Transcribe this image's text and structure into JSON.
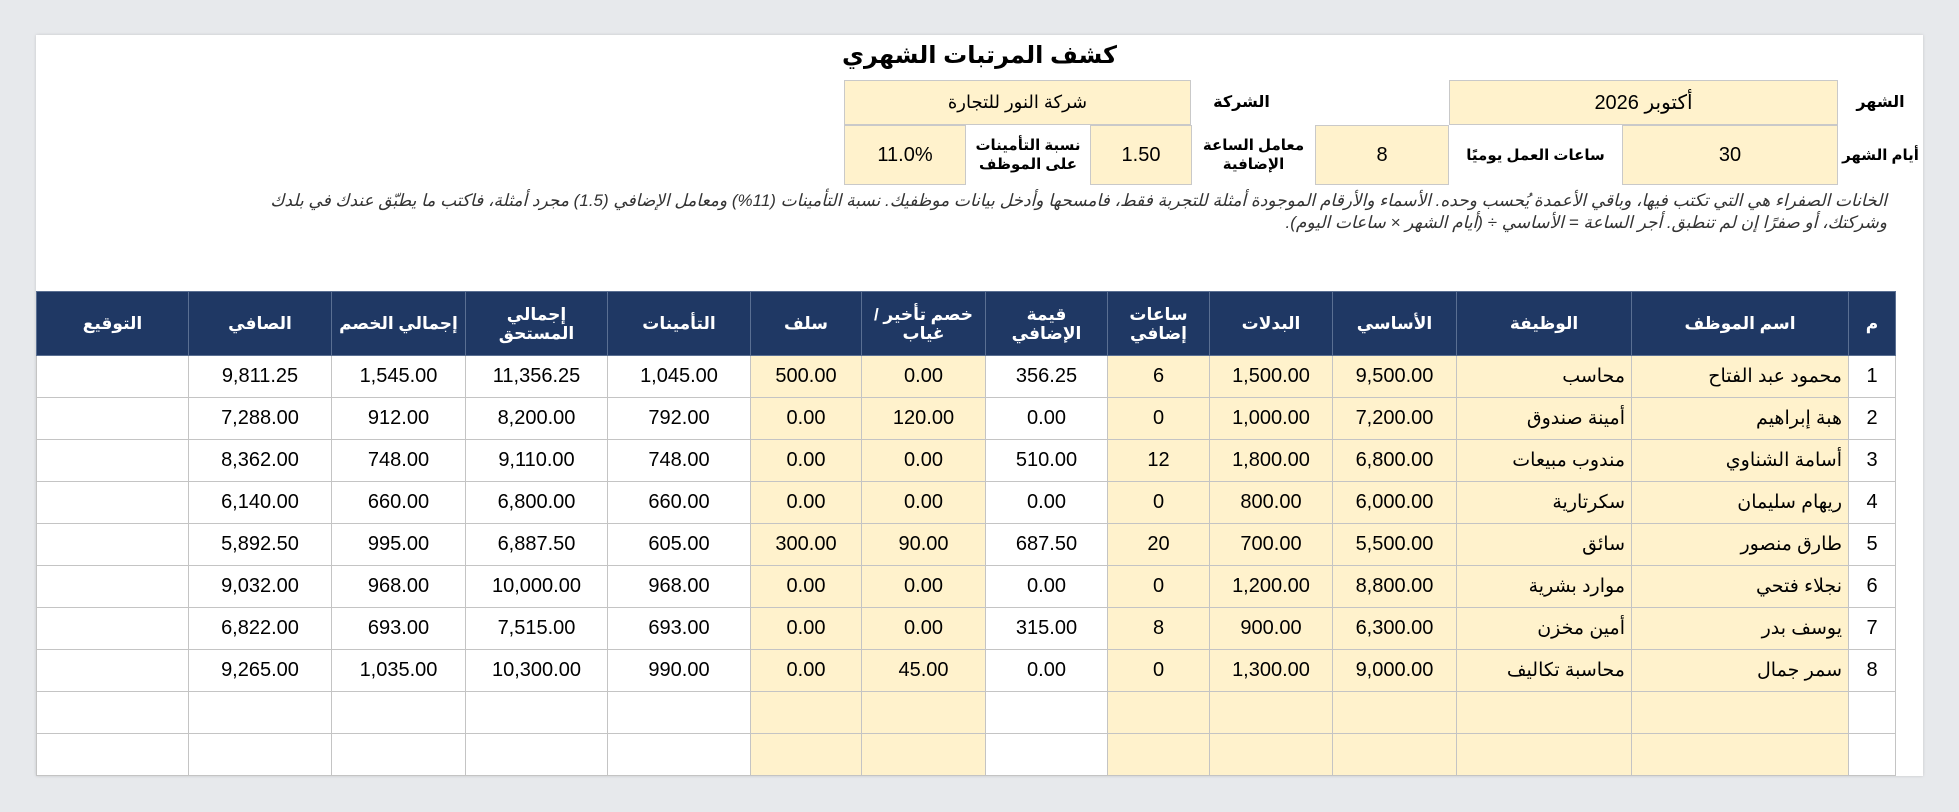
{
  "title": "كشف المرتبات الشهري",
  "info": {
    "month_label": "الشهر",
    "month_value": "أكتوبر 2026",
    "company_label": "الشركة",
    "company_value": "شركة النور للتجارة",
    "days_label": "أيام الشهر",
    "days_value": "30",
    "hours_label": "ساعات العمل يوميًا",
    "hours_value": "8",
    "ot_label": "معامل الساعة الإضافية",
    "ot_value": "1.50",
    "ins_label": "نسبة التأمينات على الموظف",
    "ins_value": "11.0%"
  },
  "note_line1": "الخانات الصفراء هي التي تكتب فيها، وباقي الأعمدة يُحسب وحده. الأسماء والأرقام الموجودة أمثلة للتجربة فقط، فامسحها وأدخل بيانات موظفيك. نسبة التأمينات (11%) ومعامل الإضافي (1.5) مجرد أمثلة، فاكتب ما يطبّق عندك في بلدك",
  "note_line2": "وشركتك، أو صفرًا إن لم تنطبق. أجر الساعة = الأساسي ÷ (أيام الشهر × ساعات اليوم).",
  "columns": [
    "م",
    "اسم الموظف",
    "الوظيفة",
    "الأساسي",
    "البدلات",
    "ساعات إضافي",
    "قيمة الإضافي",
    "خصم تأخير / غياب",
    "سلف",
    "التأمينات",
    "إجمالي المستحق",
    "إجمالي الخصم",
    "الصافي",
    "التوقيع"
  ],
  "rows": [
    [
      "1",
      "محمود عبد الفتاح",
      "محاسب",
      "9,500.00",
      "1,500.00",
      "6",
      "356.25",
      "0.00",
      "500.00",
      "1,045.00",
      "11,356.25",
      "1,545.00",
      "9,811.25",
      ""
    ],
    [
      "2",
      "هبة إبراهيم",
      "أمينة صندوق",
      "7,200.00",
      "1,000.00",
      "0",
      "0.00",
      "120.00",
      "0.00",
      "792.00",
      "8,200.00",
      "912.00",
      "7,288.00",
      ""
    ],
    [
      "3",
      "أسامة الشناوي",
      "مندوب مبيعات",
      "6,800.00",
      "1,800.00",
      "12",
      "510.00",
      "0.00",
      "0.00",
      "748.00",
      "9,110.00",
      "748.00",
      "8,362.00",
      ""
    ],
    [
      "4",
      "ريهام سليمان",
      "سكرتارية",
      "6,000.00",
      "800.00",
      "0",
      "0.00",
      "0.00",
      "0.00",
      "660.00",
      "6,800.00",
      "660.00",
      "6,140.00",
      ""
    ],
    [
      "5",
      "طارق منصور",
      "سائق",
      "5,500.00",
      "700.00",
      "20",
      "687.50",
      "90.00",
      "300.00",
      "605.00",
      "6,887.50",
      "995.00",
      "5,892.50",
      ""
    ],
    [
      "6",
      "نجلاء فتحي",
      "موارد بشرية",
      "8,800.00",
      "1,200.00",
      "0",
      "0.00",
      "0.00",
      "0.00",
      "968.00",
      "10,000.00",
      "968.00",
      "9,032.00",
      ""
    ],
    [
      "7",
      "يوسف بدر",
      "أمين مخزن",
      "6,300.00",
      "900.00",
      "8",
      "315.00",
      "0.00",
      "0.00",
      "693.00",
      "7,515.00",
      "693.00",
      "6,822.00",
      ""
    ],
    [
      "8",
      "سمر جمال",
      "محاسبة تكاليف",
      "9,000.00",
      "1,300.00",
      "0",
      "0.00",
      "45.00",
      "0.00",
      "990.00",
      "10,300.00",
      "1,035.00",
      "9,265.00",
      ""
    ],
    [
      "",
      "",
      "",
      "",
      "",
      "",
      "",
      "",
      "",
      "",
      "",
      "",
      "",
      ""
    ],
    [
      "",
      "",
      "",
      "",
      "",
      "",
      "",
      "",
      "",
      "",
      "",
      "",
      "",
      ""
    ]
  ],
  "colors": {
    "header_bg": "#1f3864",
    "input_bg": "#fff2cc",
    "header_text": "#ffffff"
  }
}
